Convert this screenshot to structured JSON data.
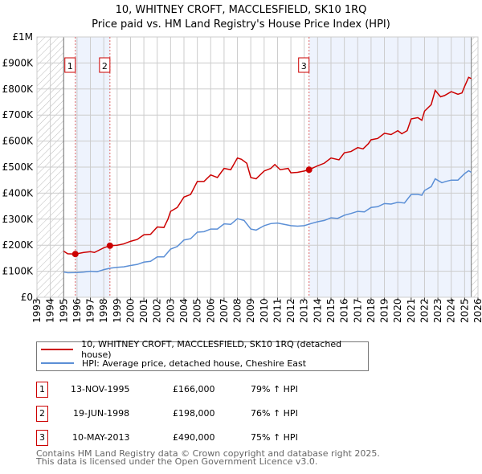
{
  "chart_data": {
    "type": "line",
    "title": "10, WHITNEY CROFT, MACCLESFIELD, SK10 1RQ",
    "subtitle": "Price paid vs. HM Land Registry's House Price Index (HPI)",
    "xlim": [
      1993,
      2026
    ],
    "ylim": [
      0,
      1000000
    ],
    "x_ticks": [
      "1993",
      "1994",
      "1995",
      "1996",
      "1997",
      "1998",
      "1999",
      "2000",
      "2001",
      "2002",
      "2003",
      "2004",
      "2005",
      "2006",
      "2007",
      "2008",
      "2009",
      "2010",
      "2011",
      "2012",
      "2013",
      "2014",
      "2015",
      "2016",
      "2017",
      "2018",
      "2019",
      "2020",
      "2021",
      "2022",
      "2023",
      "2024",
      "2025",
      "2026"
    ],
    "y_ticks": [
      {
        "v": 0,
        "label": "£0"
      },
      {
        "v": 100000,
        "label": "£100K"
      },
      {
        "v": 200000,
        "label": "£200K"
      },
      {
        "v": 300000,
        "label": "£300K"
      },
      {
        "v": 400000,
        "label": "£400K"
      },
      {
        "v": 500000,
        "label": "£500K"
      },
      {
        "v": 600000,
        "label": "£600K"
      },
      {
        "v": 700000,
        "label": "£700K"
      },
      {
        "v": 800000,
        "label": "£800K"
      },
      {
        "v": 900000,
        "label": "£900K"
      },
      {
        "v": 1000000,
        "label": "£1M"
      }
    ],
    "grid": true,
    "data_range": [
      1995,
      2025.5
    ],
    "series": [
      {
        "name": "10, WHITNEY CROFT, MACCLESFIELD, SK10 1RQ (detached house)",
        "color": "#cc0000",
        "x": [
          1995,
          1995.3,
          1995.87,
          1996.5,
          1997,
          1997.3,
          1998,
          1998.46,
          1999,
          1999.5,
          2000,
          2000.5,
          2001,
          2001.5,
          2002,
          2002.5,
          2002.8,
          2003,
          2003.5,
          2004,
          2004.5,
          2005,
          2005.5,
          2006,
          2006.5,
          2007,
          2007.5,
          2008,
          2008.3,
          2008.7,
          2009,
          2009.4,
          2010,
          2010.5,
          2010.8,
          2011.2,
          2011.8,
          2012,
          2012.5,
          2013,
          2013.36,
          2014,
          2014.5,
          2015,
          2015.6,
          2016,
          2016.5,
          2017,
          2017.4,
          2017.8,
          2018,
          2018.5,
          2019,
          2019.5,
          2020,
          2020.3,
          2020.7,
          2021,
          2021.5,
          2021.8,
          2022,
          2022.5,
          2022.8,
          2023.2,
          2023.5,
          2024,
          2024.5,
          2024.8,
          2025,
          2025.3,
          2025.5
        ],
        "y": [
          177000,
          167000,
          166000,
          172000,
          175000,
          172000,
          190000,
          198000,
          200000,
          205000,
          215000,
          222000,
          240000,
          242000,
          270000,
          268000,
          300000,
          330000,
          345000,
          385000,
          395000,
          445000,
          445000,
          470000,
          460000,
          495000,
          490000,
          535000,
          530000,
          515000,
          460000,
          455000,
          485000,
          495000,
          510000,
          490000,
          495000,
          478000,
          480000,
          485000,
          490000,
          505000,
          515000,
          535000,
          528000,
          555000,
          560000,
          575000,
          570000,
          590000,
          605000,
          610000,
          630000,
          625000,
          640000,
          628000,
          640000,
          685000,
          690000,
          680000,
          715000,
          740000,
          795000,
          770000,
          775000,
          790000,
          780000,
          785000,
          810000,
          845000,
          840000
        ]
      },
      {
        "name": "HPI: Average price, detached house, Cheshire East",
        "color": "#5b8fd6",
        "x": [
          1995,
          1995.3,
          1996,
          1996.5,
          1997,
          1997.5,
          1998,
          1998.5,
          1999,
          1999.5,
          2000,
          2000.5,
          2001,
          2001.5,
          2002,
          2002.5,
          2003,
          2003.5,
          2004,
          2004.5,
          2005,
          2005.5,
          2006,
          2006.5,
          2007,
          2007.5,
          2008,
          2008.5,
          2009,
          2009.4,
          2010,
          2010.5,
          2011,
          2011.5,
          2012,
          2012.5,
          2013,
          2013.5,
          2014,
          2014.5,
          2015,
          2015.5,
          2016,
          2016.5,
          2017,
          2017.5,
          2018,
          2018.5,
          2019,
          2019.5,
          2020,
          2020.5,
          2021,
          2021.5,
          2021.8,
          2022,
          2022.5,
          2022.8,
          2023.3,
          2023.6,
          2024,
          2024.5,
          2025,
          2025.3,
          2025.5
        ],
        "y": [
          97000,
          94000,
          95000,
          97000,
          100000,
          98000,
          106000,
          112000,
          115000,
          117000,
          122000,
          126000,
          135000,
          138000,
          155000,
          155000,
          185000,
          195000,
          220000,
          225000,
          250000,
          252000,
          262000,
          262000,
          282000,
          280000,
          302000,
          295000,
          262000,
          258000,
          275000,
          283000,
          285000,
          280000,
          275000,
          273000,
          275000,
          283000,
          290000,
          295000,
          305000,
          303000,
          315000,
          322000,
          330000,
          328000,
          345000,
          348000,
          360000,
          358000,
          365000,
          362000,
          395000,
          395000,
          392000,
          410000,
          425000,
          455000,
          440000,
          445000,
          450000,
          450000,
          475000,
          486000,
          480000
        ]
      }
    ],
    "sales": [
      {
        "label": "1",
        "x": 1995.87,
        "y": 166000,
        "date": "13-NOV-1995",
        "price": "£166,000",
        "hpi": "79% ↑ HPI"
      },
      {
        "label": "2",
        "x": 1998.46,
        "y": 198000,
        "date": "19-JUN-1998",
        "price": "£198,000",
        "hpi": "76% ↑ HPI"
      },
      {
        "label": "3",
        "x": 2013.36,
        "y": 490000,
        "date": "10-MAY-2013",
        "price": "£490,000",
        "hpi": "75% ↑ HPI"
      }
    ],
    "footer": [
      "Contains HM Land Registry data © Crown copyright and database right 2025.",
      "This data is licensed under the Open Government Licence v3.0."
    ]
  }
}
